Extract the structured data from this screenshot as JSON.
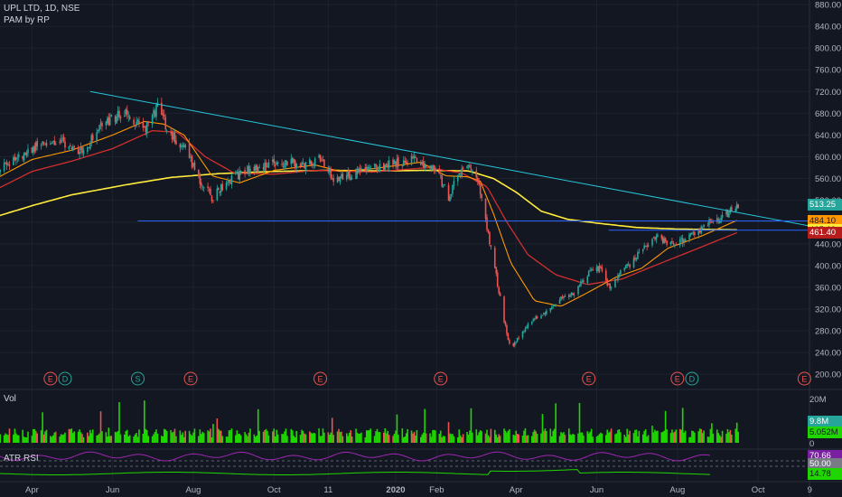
{
  "header": {
    "symbol_line": "UPL LTD, 1D, NSE",
    "indicator_line": "PAM by RP"
  },
  "volume_pane": {
    "title": "Vol",
    "scale": [
      "20M",
      "10M",
      "0"
    ]
  },
  "rsi_pane": {
    "title": "ATR RSI"
  },
  "price_labels": [
    {
      "text": "513.25",
      "color": "#26a69a",
      "textColor": "#ffffff",
      "y": 513.25
    },
    {
      "text": "484.10",
      "color": "#ff9800",
      "textColor": "#131722",
      "y": 484.1
    },
    {
      "text": "465.60",
      "color": "#ffeb3b",
      "textColor": "#131722",
      "y": 465.6
    },
    {
      "text": "461.40",
      "color": "#b71c1c",
      "textColor": "#ffffff",
      "y": 461.4
    }
  ],
  "vol_labels": [
    {
      "text": "9.8M",
      "color": "#26a69a",
      "textColor": "#ffffff"
    },
    {
      "text": "5.052M",
      "color": "#1fd600",
      "textColor": "#131722"
    }
  ],
  "rsi_labels": [
    {
      "text": "70.66",
      "color": "#7b1fa2",
      "textColor": "#ffffff"
    },
    {
      "text": "50.00",
      "color": "#787b86",
      "textColor": "#ffffff"
    },
    {
      "text": "14.78",
      "color": "#1fd600",
      "textColor": "#131722"
    }
  ],
  "events": [
    {
      "label": "E",
      "color": "#ef5350",
      "x": "2019-04-15"
    },
    {
      "label": "D",
      "color": "#26a69a",
      "x": "2019-04-26"
    },
    {
      "label": "S",
      "color": "#26a69a",
      "x": "2019-06-20"
    },
    {
      "label": "E",
      "color": "#ef5350",
      "x": "2019-07-30"
    },
    {
      "label": "E",
      "color": "#ef5350",
      "x": "2019-11-05"
    },
    {
      "label": "E",
      "color": "#ef5350",
      "x": "2020-02-04"
    },
    {
      "label": "E",
      "color": "#ef5350",
      "x": "2020-05-26"
    },
    {
      "label": "E",
      "color": "#ef5350",
      "x": "2020-08-01"
    },
    {
      "label": "D",
      "color": "#26a69a",
      "x": "2020-08-12"
    },
    {
      "label": "E",
      "color": "#ef5350",
      "x": "2020-11-05"
    }
  ],
  "colors": {
    "background": "#131722",
    "grid": "#1e222d",
    "up": "#26a69a",
    "down": "#ef5350",
    "trendline": "#26c6da",
    "hline": "#2962ff",
    "ma_fast": "#ff9800",
    "ma_mid": "#d32f2f",
    "ma_slow": "#ffeb3b",
    "volume": "#1fd600",
    "rsi": "#9c27b0",
    "atr": "#1fd600"
  },
  "chart_data": {
    "type": "candlestick",
    "title": "UPL LTD, 1D, NSE",
    "ylim": [
      182,
      885
    ],
    "y_ticks": [
      880,
      840,
      800,
      760,
      720,
      680,
      640,
      600,
      560,
      520,
      480,
      440,
      400,
      360,
      320,
      280,
      240,
      200
    ],
    "x_ticks": [
      {
        "label": "Apr",
        "x": "2019-04-01"
      },
      {
        "label": "Jun",
        "x": "2019-06-01"
      },
      {
        "label": "Aug",
        "x": "2019-08-01"
      },
      {
        "label": "Oct",
        "x": "2019-10-01"
      },
      {
        "label": "11",
        "x": "2019-11-11"
      },
      {
        "label": "2020",
        "x": "2020-01-01"
      },
      {
        "label": "Feb",
        "x": "2020-02-01"
      },
      {
        "label": "Apr",
        "x": "2020-04-01"
      },
      {
        "label": "Jun",
        "x": "2020-06-01"
      },
      {
        "label": "Aug",
        "x": "2020-08-01"
      },
      {
        "label": "Oct",
        "x": "2020-10-01"
      },
      {
        "label": "9",
        "x": "2020-11-09"
      }
    ],
    "x_range": [
      "2019-03-01",
      "2020-11-15"
    ],
    "price_keypoints": [
      [
        "2019-03-01",
        560
      ],
      [
        "2019-03-15",
        590
      ],
      [
        "2019-04-01",
        615
      ],
      [
        "2019-04-20",
        630
      ],
      [
        "2019-05-10",
        610
      ],
      [
        "2019-05-25",
        665
      ],
      [
        "2019-06-10",
        680
      ],
      [
        "2019-06-25",
        650
      ],
      [
        "2019-07-05",
        690
      ],
      [
        "2019-07-15",
        640
      ],
      [
        "2019-07-25",
        620
      ],
      [
        "2019-08-05",
        560
      ],
      [
        "2019-08-15",
        525
      ],
      [
        "2019-08-25",
        550
      ],
      [
        "2019-09-10",
        575
      ],
      [
        "2019-09-25",
        585
      ],
      [
        "2019-10-10",
        590
      ],
      [
        "2019-10-25",
        585
      ],
      [
        "2019-11-05",
        595
      ],
      [
        "2019-11-15",
        560
      ],
      [
        "2019-11-25",
        565
      ],
      [
        "2019-12-10",
        575
      ],
      [
        "2019-12-25",
        585
      ],
      [
        "2020-01-05",
        590
      ],
      [
        "2020-01-15",
        595
      ],
      [
        "2020-01-25",
        585
      ],
      [
        "2020-02-03",
        565
      ],
      [
        "2020-02-10",
        525
      ],
      [
        "2020-02-18",
        570
      ],
      [
        "2020-02-25",
        580
      ],
      [
        "2020-03-03",
        555
      ],
      [
        "2020-03-08",
        505
      ],
      [
        "2020-03-12",
        440
      ],
      [
        "2020-03-17",
        380
      ],
      [
        "2020-03-23",
        300
      ],
      [
        "2020-03-28",
        245
      ],
      [
        "2020-04-05",
        275
      ],
      [
        "2020-04-15",
        305
      ],
      [
        "2020-04-25",
        315
      ],
      [
        "2020-05-05",
        340
      ],
      [
        "2020-05-15",
        350
      ],
      [
        "2020-05-25",
        385
      ],
      [
        "2020-06-03",
        395
      ],
      [
        "2020-06-12",
        355
      ],
      [
        "2020-06-20",
        395
      ],
      [
        "2020-06-28",
        405
      ],
      [
        "2020-07-05",
        430
      ],
      [
        "2020-07-15",
        455
      ],
      [
        "2020-07-25",
        440
      ],
      [
        "2020-08-05",
        445
      ],
      [
        "2020-08-15",
        460
      ],
      [
        "2020-08-25",
        480
      ],
      [
        "2020-09-05",
        490
      ],
      [
        "2020-09-12",
        505
      ],
      [
        "2020-09-16",
        513.25
      ]
    ],
    "ma_fast_keypoints": [
      [
        "2019-03-01",
        555
      ],
      [
        "2019-04-01",
        595
      ],
      [
        "2019-05-01",
        612
      ],
      [
        "2019-06-01",
        640
      ],
      [
        "2019-06-25",
        665
      ],
      [
        "2019-07-10",
        660
      ],
      [
        "2019-07-25",
        640
      ],
      [
        "2019-08-15",
        565
      ],
      [
        "2019-09-05",
        552
      ],
      [
        "2019-10-01",
        575
      ],
      [
        "2019-11-01",
        585
      ],
      [
        "2019-11-20",
        573
      ],
      [
        "2019-12-15",
        578
      ],
      [
        "2020-01-20",
        590
      ],
      [
        "2020-02-08",
        565
      ],
      [
        "2020-02-25",
        563
      ],
      [
        "2020-03-05",
        555
      ],
      [
        "2020-03-15",
        495
      ],
      [
        "2020-03-28",
        405
      ],
      [
        "2020-04-15",
        335
      ],
      [
        "2020-05-05",
        325
      ],
      [
        "2020-05-25",
        350
      ],
      [
        "2020-06-15",
        378
      ],
      [
        "2020-07-05",
        395
      ],
      [
        "2020-07-25",
        432
      ],
      [
        "2020-08-20",
        455
      ],
      [
        "2020-09-16",
        484
      ]
    ],
    "ma_mid_keypoints": [
      [
        "2019-03-01",
        535
      ],
      [
        "2019-04-01",
        573
      ],
      [
        "2019-05-01",
        592
      ],
      [
        "2019-06-01",
        615
      ],
      [
        "2019-07-01",
        648
      ],
      [
        "2019-07-20",
        645
      ],
      [
        "2019-08-10",
        600
      ],
      [
        "2019-09-01",
        570
      ],
      [
        "2019-10-01",
        568
      ],
      [
        "2019-11-01",
        575
      ],
      [
        "2019-12-15",
        572
      ],
      [
        "2020-01-25",
        580
      ],
      [
        "2020-02-20",
        570
      ],
      [
        "2020-03-10",
        545
      ],
      [
        "2020-03-25",
        480
      ],
      [
        "2020-04-10",
        420
      ],
      [
        "2020-05-01",
        383
      ],
      [
        "2020-05-25",
        365
      ],
      [
        "2020-06-20",
        375
      ],
      [
        "2020-07-15",
        400
      ],
      [
        "2020-08-15",
        430
      ],
      [
        "2020-09-16",
        461.4
      ]
    ],
    "ma_slow_keypoints": [
      [
        "2019-03-01",
        487
      ],
      [
        "2019-04-01",
        510
      ],
      [
        "2019-05-01",
        530
      ],
      [
        "2019-06-10",
        548
      ],
      [
        "2019-07-15",
        562
      ],
      [
        "2019-08-20",
        569
      ],
      [
        "2019-10-01",
        573
      ],
      [
        "2019-11-10",
        575
      ],
      [
        "2019-12-20",
        574
      ],
      [
        "2020-01-25",
        575
      ],
      [
        "2020-02-25",
        574
      ],
      [
        "2020-03-15",
        560
      ],
      [
        "2020-04-01",
        535
      ],
      [
        "2020-04-20",
        500
      ],
      [
        "2020-05-10",
        485
      ],
      [
        "2020-06-01",
        478
      ],
      [
        "2020-07-01",
        470
      ],
      [
        "2020-08-01",
        467
      ],
      [
        "2020-09-16",
        465.6
      ]
    ],
    "trendline": [
      [
        "2019-05-15",
        720
      ],
      [
        "2020-11-15",
        470
      ]
    ],
    "horizontal_levels": [
      {
        "start": "2019-06-20",
        "y": 482
      },
      {
        "start": "2020-06-10",
        "y": 465
      }
    ]
  }
}
